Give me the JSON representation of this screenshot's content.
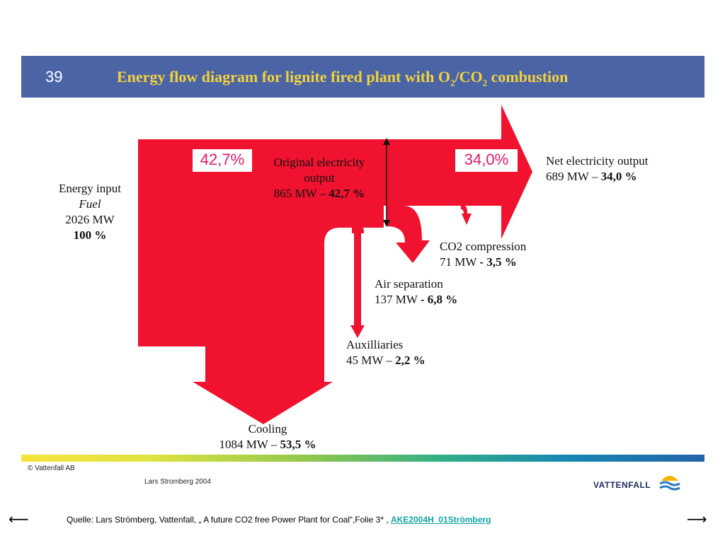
{
  "slide": {
    "number": "39",
    "title_part1": "Energy flow diagram for lignite fired plant with O",
    "title_sub1": "2",
    "title_part2": "/CO",
    "title_sub2": "2",
    "title_part3": " combustion"
  },
  "colors": {
    "flow": "#f0122e",
    "header": "#4a64a6",
    "title": "#f2d23d",
    "percent": "#e0186c"
  },
  "diagram": {
    "energy_input": {
      "line1": "Energy input",
      "line2": "Fuel",
      "line3": "2026 MW",
      "line4": "100 %"
    },
    "original_output": {
      "line1": "Original electricity",
      "line2": "output",
      "line3_prefix": "865 MW – ",
      "line3_bold": "42,7 %"
    },
    "net_output": {
      "line1": "Net electricity output",
      "line2_prefix": "689 MW – ",
      "line2_bold": "34,0 %"
    },
    "co2_compression": {
      "line1": "CO2 compression",
      "line2_prefix": "71 MW ",
      "line2_bold": "- 3,5 %"
    },
    "air_separation": {
      "line1": "Air separation",
      "line2_prefix": "137 MW ",
      "line2_bold": "- 6,8 %"
    },
    "auxiliaries": {
      "line1": "Auxilliaries",
      "line2_prefix": "45 MW – ",
      "line2_bold": "2,2 %"
    },
    "cooling": {
      "line1": "Cooling",
      "line2_prefix": "1084 MW – ",
      "line2_bold": "53,5 %"
    },
    "pct_original": "42,7%",
    "pct_net": "34,0%"
  },
  "footer": {
    "copyright": "© Vattenfall AB",
    "author": "Lars Stromberg 2004",
    "brand": "VATTENFALL",
    "source_text": "Quelle: Lars Strömberg, Vattenfall, „ A future CO2 free Power Plant for Coal“,Folie 3* , ",
    "source_link": "AKE2004H_01Strömberg"
  },
  "nav": {
    "prev_icon": "left-arrow-icon",
    "next_icon": "right-arrow-icon"
  }
}
